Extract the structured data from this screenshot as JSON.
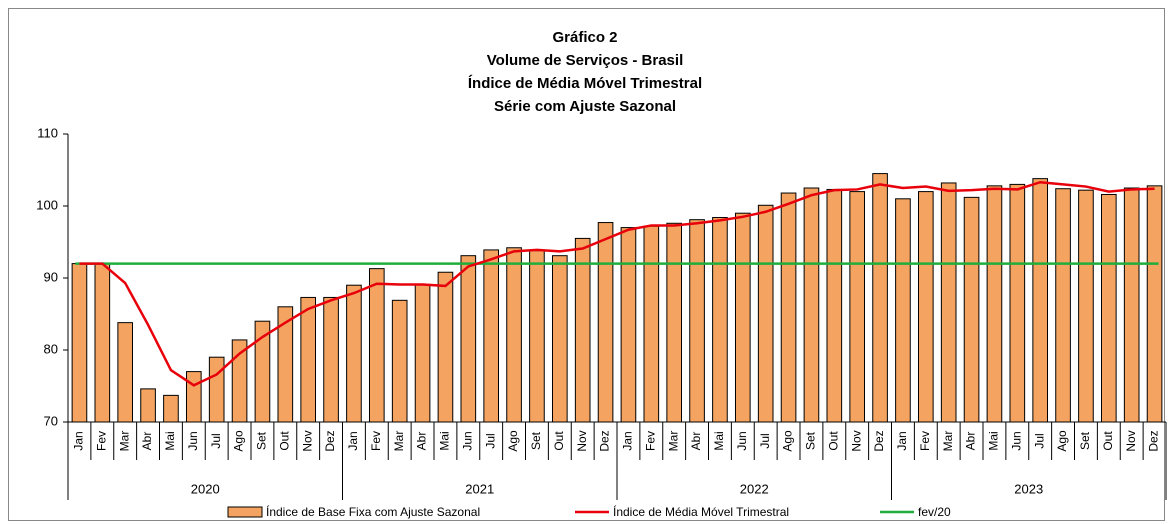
{
  "chart_data": {
    "type": "bar_line",
    "title": [
      "Gráfico 2",
      "Volume de Serviços - Brasil",
      "Índice de Média Móvel Trimestral",
      "Série com Ajuste Sazonal"
    ],
    "categories": [
      "Jan",
      "Fev",
      "Mar",
      "Abr",
      "Mai",
      "Jun",
      "Jul",
      "Ago",
      "Set",
      "Out",
      "Nov",
      "Dez",
      "Jan",
      "Fev",
      "Mar",
      "Abr",
      "Mai",
      "Jun",
      "Jul",
      "Ago",
      "Set",
      "Out",
      "Nov",
      "Dez",
      "Jan",
      "Fev",
      "Mar",
      "Abr",
      "Mai",
      "Jun",
      "Jul",
      "Ago",
      "Set",
      "Out",
      "Nov",
      "Dez",
      "Jan",
      "Fev",
      "Mar",
      "Abr",
      "Mai",
      "Jun",
      "Jul",
      "Ago",
      "Set",
      "Out",
      "Nov",
      "Dez"
    ],
    "years": [
      "2020",
      "2021",
      "2022",
      "2023"
    ],
    "series": [
      {
        "name": "Índice de Base Fixa com Ajuste Sazonal",
        "type": "bar",
        "color": "#f4a460",
        "values": [
          92.0,
          92.0,
          83.8,
          74.6,
          73.7,
          77.0,
          79.0,
          81.4,
          84.0,
          86.0,
          87.3,
          87.3,
          89.0,
          91.3,
          86.9,
          89.1,
          90.8,
          93.1,
          93.9,
          94.2,
          93.8,
          93.1,
          95.5,
          97.7,
          97.0,
          97.2,
          97.6,
          98.1,
          98.4,
          99.0,
          100.1,
          101.8,
          102.5,
          102.3,
          102.0,
          104.5,
          101.0,
          102.0,
          103.2,
          101.2,
          102.8,
          103.0,
          103.8,
          102.4,
          102.2,
          101.6,
          102.5,
          102.8
        ]
      },
      {
        "name": "Índice de Média Móvel Trimestral",
        "type": "line",
        "color": "#e8000b",
        "values": [
          92.0,
          92.0,
          89.3,
          83.5,
          77.2,
          75.1,
          76.6,
          79.5,
          81.8,
          83.8,
          85.7,
          86.9,
          87.9,
          89.2,
          89.1,
          89.1,
          88.9,
          91.6,
          92.6,
          93.7,
          93.9,
          93.7,
          94.1,
          95.4,
          96.7,
          97.3,
          97.3,
          97.6,
          98.0,
          98.5,
          99.2,
          100.3,
          101.5,
          102.2,
          102.3,
          103.0,
          102.5,
          102.7,
          102.1,
          102.2,
          102.4,
          102.3,
          103.3,
          103.0,
          102.7,
          102.0,
          102.3,
          102.4
        ]
      }
    ],
    "reference": {
      "name": "fev/20",
      "value": 92,
      "color": "#1fad3c"
    },
    "ylim": [
      70,
      110
    ],
    "yticks": [
      70,
      80,
      90,
      100,
      110
    ]
  }
}
